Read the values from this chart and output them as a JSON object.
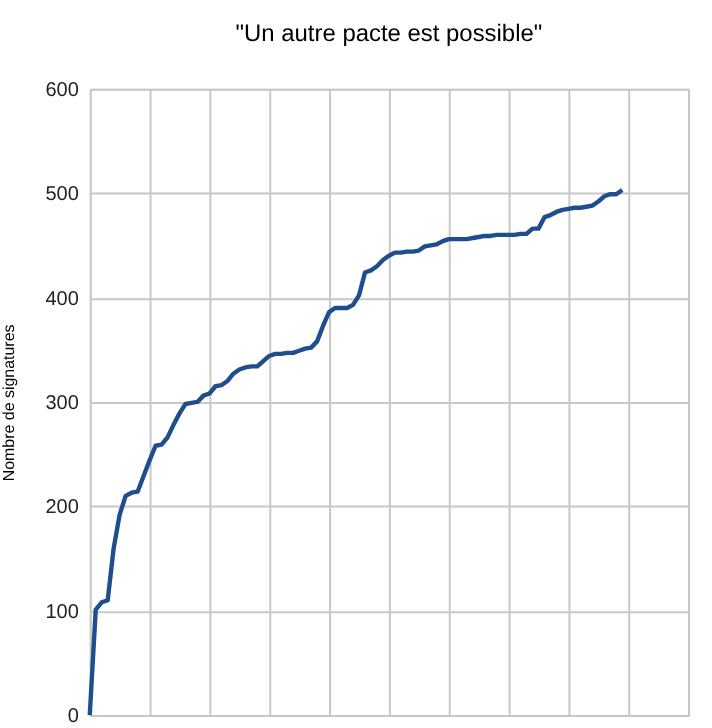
{
  "chart_data": {
    "type": "line",
    "title": "\"Un autre pacte est possible\"",
    "ylabel": "Nombre de signatures",
    "categories": [
      null,
      null,
      null,
      null,
      null,
      null,
      null,
      null,
      null,
      null,
      null,
      null,
      null,
      null,
      null,
      null,
      null,
      null,
      null,
      null,
      null,
      null,
      null,
      null,
      null,
      null,
      null,
      null,
      null,
      null,
      null,
      null,
      null,
      null,
      null,
      null,
      null,
      null,
      null,
      null,
      null,
      null,
      null,
      null,
      null,
      null,
      null,
      null,
      null,
      null,
      null,
      null,
      null,
      null,
      null,
      null,
      null,
      null,
      null,
      null,
      null,
      null,
      null,
      null,
      null,
      null,
      null,
      null,
      null,
      null,
      null,
      null,
      null,
      null,
      null,
      null,
      null,
      null,
      null,
      null,
      null,
      null,
      null,
      null,
      null,
      null,
      null,
      null,
      null,
      null,
      null,
      null,
      null,
      null,
      null,
      null,
      null,
      null,
      null,
      null,
      null
    ],
    "series": [
      {
        "color": "#1f4e8c",
        "values": [
          0,
          101,
          108,
          110,
          160,
          192,
          210,
          213,
          214,
          229,
          244,
          258,
          259,
          266,
          278,
          289,
          298,
          299,
          300,
          306,
          308,
          315,
          316,
          320,
          327,
          331,
          333,
          334,
          334,
          339,
          344,
          346,
          346,
          347,
          347,
          349,
          351,
          352,
          358,
          373,
          386,
          390,
          390,
          390,
          393,
          402,
          424,
          426,
          430,
          436,
          440,
          443,
          443,
          444,
          444,
          445,
          449,
          450,
          451,
          454,
          456,
          456,
          456,
          456,
          457,
          458,
          459,
          459,
          460,
          460,
          460,
          460,
          461,
          461,
          466,
          466,
          477,
          479,
          482,
          484,
          485,
          486,
          486,
          487,
          488,
          492,
          497,
          499,
          499,
          503,
          null,
          null,
          null,
          null,
          null,
          null,
          null,
          null,
          null,
          null,
          null
        ]
      }
    ],
    "ylim": [
      0,
      600
    ],
    "yticks": [
      0,
      100,
      200,
      300,
      400,
      500,
      600
    ],
    "grid": true,
    "tick_labels": "y",
    "marker": "none",
    "line_style": "solid"
  }
}
